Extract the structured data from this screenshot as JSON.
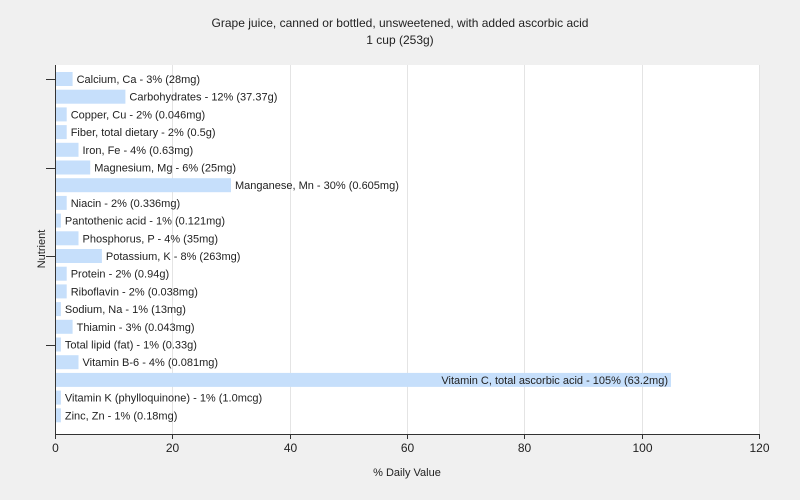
{
  "chart_data": {
    "type": "bar",
    "orientation": "horizontal",
    "title": "Grape juice, canned or bottled, unsweetened, with added ascorbic acid",
    "subtitle": "1 cup (253g)",
    "xlabel": "% Daily Value",
    "ylabel": "Nutrient",
    "xlim": [
      0,
      120
    ],
    "xticks": [
      0,
      20,
      40,
      60,
      80,
      100,
      120
    ],
    "grid": true,
    "bar_color": "#c6dffb",
    "categories": [
      "Calcium, Ca",
      "Carbohydrates",
      "Copper, Cu",
      "Fiber, total dietary",
      "Iron, Fe",
      "Magnesium, Mg",
      "Manganese, Mn",
      "Niacin",
      "Pantothenic acid",
      "Phosphorus, P",
      "Potassium, K",
      "Protein",
      "Riboflavin",
      "Sodium, Na",
      "Thiamin",
      "Total lipid (fat)",
      "Vitamin B-6",
      "Vitamin C, total ascorbic acid",
      "Vitamin K (phylloquinone)",
      "Zinc, Zn"
    ],
    "values": [
      3,
      12,
      2,
      2,
      4,
      6,
      30,
      2,
      1,
      4,
      8,
      2,
      2,
      1,
      3,
      1,
      4,
      105,
      1,
      1
    ],
    "labels": [
      "Calcium, Ca - 3% (28mg)",
      "Carbohydrates - 12% (37.37g)",
      "Copper, Cu - 2% (0.046mg)",
      "Fiber, total dietary - 2% (0.5g)",
      "Iron, Fe - 4% (0.63mg)",
      "Magnesium, Mg - 6% (25mg)",
      "Manganese, Mn - 30% (0.605mg)",
      "Niacin - 2% (0.336mg)",
      "Pantothenic acid - 1% (0.121mg)",
      "Phosphorus, P - 4% (35mg)",
      "Potassium, K - 8% (263mg)",
      "Protein - 2% (0.94g)",
      "Riboflavin - 2% (0.038mg)",
      "Sodium, Na - 1% (13mg)",
      "Thiamin - 3% (0.043mg)",
      "Total lipid (fat) - 1% (0.33g)",
      "Vitamin B-6 - 4% (0.081mg)",
      "Vitamin C, total ascorbic acid - 105% (63.2mg)",
      "Vitamin K (phylloquinone) - 1% (1.0mcg)",
      "Zinc, Zn - 1% (0.18mg)"
    ]
  }
}
